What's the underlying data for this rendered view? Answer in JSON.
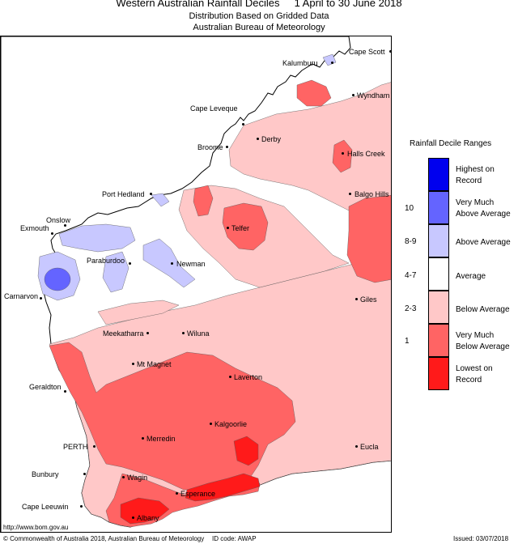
{
  "header": {
    "title_main": "Western Australian Rainfall Deciles",
    "title_period": "1 April to 30 June 2018",
    "subtitle": "Distribution Based on Gridded Data",
    "agency": "Australian Bureau of Meteorology"
  },
  "towns": [
    {
      "name": "Cape Scott"
    },
    {
      "name": "Kalumburu"
    },
    {
      "name": "Wyndham"
    },
    {
      "name": "Cape Leveque"
    },
    {
      "name": "Derby"
    },
    {
      "name": "Broome"
    },
    {
      "name": "Halls Creek"
    },
    {
      "name": "Port Hedland"
    },
    {
      "name": "Balgo Hills"
    },
    {
      "name": "Onslow"
    },
    {
      "name": "Exmouth"
    },
    {
      "name": "Telfer"
    },
    {
      "name": "Paraburdoo"
    },
    {
      "name": "Newman"
    },
    {
      "name": "Carnarvon"
    },
    {
      "name": "Giles"
    },
    {
      "name": "Meekatharra"
    },
    {
      "name": "Wiluna"
    },
    {
      "name": "Mt Magnet"
    },
    {
      "name": "Geraldton"
    },
    {
      "name": "Laverton"
    },
    {
      "name": "Kalgoorlie"
    },
    {
      "name": "Merredin"
    },
    {
      "name": "PERTH"
    },
    {
      "name": "Bunbury"
    },
    {
      "name": "Wagin"
    },
    {
      "name": "Esperance"
    },
    {
      "name": "Cape Leeuwin"
    },
    {
      "name": "Albany"
    },
    {
      "name": "Eucla"
    }
  ],
  "legend": {
    "title": "Rainfall Decile Ranges",
    "items": [
      {
        "label_1": "Highest on",
        "label_2": "Record",
        "range": "",
        "color": "#0000ee"
      },
      {
        "label_1": "Very Much",
        "label_2": "Above Average",
        "range": "10",
        "color": "#6464ff"
      },
      {
        "label_1": "Above Average",
        "label_2": "",
        "range": "8-9",
        "color": "#c8c8ff"
      },
      {
        "label_1": "Average",
        "label_2": "",
        "range": "4-7",
        "color": "#ffffff"
      },
      {
        "label_1": "Below Average",
        "label_2": "",
        "range": "2-3",
        "color": "#ffc8c8"
      },
      {
        "label_1": "Very Much",
        "label_2": "Below Average",
        "range": "1",
        "color": "#ff6464"
      },
      {
        "label_1": "Lowest on",
        "label_2": "Record",
        "range": "",
        "color": "#ff1a1a"
      }
    ]
  },
  "footer": {
    "url": "http://www.bom.gov.au",
    "copyright": "© Commonwealth of Australia 2018, Australian Bureau of Meteorology",
    "id_code": "ID code: AWAP",
    "issued": "Issued: 03/07/2018"
  }
}
